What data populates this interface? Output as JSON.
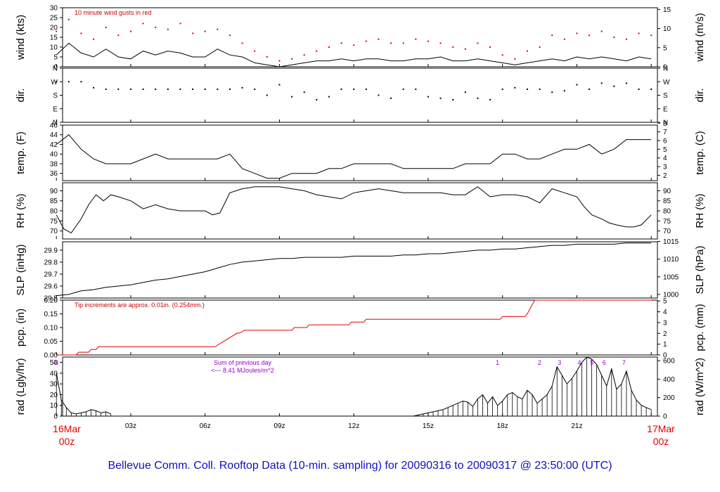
{
  "title": "Bellevue Comm. Coll. Rooftop Data (10-min. sampling) for 20090316  to  20090317 @ 23:50:00  (UTC)",
  "x_axis": {
    "hours": [
      0,
      3,
      6,
      9,
      12,
      15,
      18,
      21,
      24
    ],
    "tick_labels": [
      "",
      "03z",
      "06z",
      "09z",
      "12z",
      "15z",
      "18z",
      "21z",
      ""
    ],
    "start_date": "16Mar",
    "start_time": "00z",
    "end_date": "17Mar",
    "end_time": "00z"
  },
  "colors": {
    "line": "#000000",
    "gust": "#e00000",
    "precip": "#e00000",
    "annot": "#9900cc",
    "title": "#1010c0",
    "date": "#e00000"
  },
  "chart_data": [
    {
      "type": "line",
      "key": "wind",
      "ylabel_left": "wind (kts)",
      "ylabel_right": "wind (m/s)",
      "ylim": [
        0,
        30
      ],
      "yticks": [
        0,
        5,
        10,
        15,
        20,
        25,
        30
      ],
      "right_ticks": [
        {
          "value": 0,
          "label": "0"
        },
        {
          "value": 9.72,
          "label": "5"
        },
        {
          "value": 19.44,
          "label": "10"
        },
        {
          "value": 29.16,
          "label": "15"
        }
      ],
      "annotation": "10  minute wind gusts in red",
      "series": [
        {
          "name": "",
          "style": "line",
          "x": [
            0,
            0.5,
            1,
            1.5,
            2,
            2.5,
            3,
            3.5,
            4,
            4.5,
            5,
            5.5,
            6,
            6.5,
            7,
            7.5,
            8,
            8.5,
            9,
            9.5,
            10,
            10.5,
            11,
            11.5,
            12,
            12.5,
            13,
            13.5,
            14,
            14.5,
            15,
            15.5,
            16,
            16.5,
            17,
            17.5,
            18,
            18.5,
            19,
            19.5,
            20,
            20.5,
            21,
            21.5,
            22,
            22.5,
            23,
            23.5,
            24
          ],
          "y": [
            6,
            12,
            7,
            5,
            9,
            5,
            4,
            8,
            6,
            8,
            7,
            5,
            5,
            9,
            6,
            5,
            2,
            1,
            0,
            1,
            2,
            3,
            3,
            4,
            3,
            4,
            4,
            3,
            3,
            4,
            4,
            5,
            3,
            3,
            4,
            3,
            2,
            1,
            2,
            3,
            4,
            3,
            5,
            4,
            5,
            4,
            3,
            5,
            4
          ]
        },
        {
          "name": "",
          "style": "dots",
          "x": [
            0,
            0.5,
            1,
            1.5,
            2,
            2.5,
            3,
            3.5,
            4,
            4.5,
            5,
            5.5,
            6,
            6.5,
            7,
            7.5,
            8,
            8.5,
            9,
            9.5,
            10,
            10.5,
            11,
            11.5,
            12,
            12.5,
            13,
            13.5,
            14,
            14.5,
            15,
            15.5,
            16,
            16.5,
            17,
            17.5,
            18,
            18.5,
            19,
            19.5,
            20,
            20.5,
            21,
            21.5,
            22,
            22.5,
            23,
            23.5,
            24
          ],
          "y": [
            18,
            24,
            17,
            14,
            20,
            16,
            18,
            22,
            20,
            19,
            22,
            17,
            18,
            19,
            16,
            12,
            8,
            5,
            3,
            4,
            6,
            8,
            10,
            12,
            11,
            13,
            14,
            12,
            12,
            14,
            13,
            12,
            10,
            9,
            12,
            10,
            6,
            4,
            8,
            10,
            16,
            14,
            17,
            16,
            18,
            15,
            14,
            17,
            16
          ]
        }
      ]
    },
    {
      "type": "scatter",
      "key": "dir",
      "ylabel_left": "dir.",
      "ylabel_right": "dir.",
      "ylim": [
        0,
        360
      ],
      "yticks": [
        0,
        90,
        180,
        270,
        360
      ],
      "ytick_labels": [
        "N",
        "E",
        "S",
        "W",
        "N"
      ],
      "series": [
        {
          "name": "",
          "x": [
            0,
            0.5,
            1,
            1.5,
            2,
            2.5,
            3,
            3.5,
            4,
            4.5,
            5,
            5.5,
            6,
            6.5,
            7,
            7.5,
            8,
            8.5,
            9,
            9.5,
            10,
            10.5,
            11,
            11.5,
            12,
            12.5,
            13,
            13.5,
            14,
            14.5,
            15,
            15.5,
            16,
            16.5,
            17,
            17.5,
            18,
            18.5,
            19,
            19.5,
            20,
            20.5,
            21,
            21.5,
            22,
            22.5,
            23,
            23.5,
            24
          ],
          "y": [
            270,
            270,
            270,
            230,
            220,
            220,
            220,
            220,
            220,
            220,
            220,
            220,
            220,
            220,
            220,
            230,
            220,
            180,
            250,
            170,
            200,
            150,
            170,
            220,
            220,
            220,
            180,
            160,
            220,
            220,
            170,
            160,
            150,
            200,
            160,
            150,
            220,
            230,
            220,
            220,
            200,
            210,
            250,
            220,
            260,
            240,
            260,
            220,
            220
          ]
        }
      ]
    },
    {
      "type": "line",
      "key": "temp",
      "ylabel_left": "temp. (F)",
      "ylabel_right": "temp. (C)",
      "ylim": [
        34.5,
        46
      ],
      "yticks": [
        36,
        38,
        40,
        42,
        44,
        46
      ],
      "right_ticks": [
        {
          "value": 35.6,
          "label": "2"
        },
        {
          "value": 37.4,
          "label": "3"
        },
        {
          "value": 39.2,
          "label": "4"
        },
        {
          "value": 41,
          "label": "5"
        },
        {
          "value": 42.8,
          "label": "6"
        },
        {
          "value": 44.6,
          "label": "7"
        },
        {
          "value": 46.4,
          "label": "8"
        }
      ],
      "series": [
        {
          "name": "",
          "x": [
            0,
            0.5,
            1,
            1.5,
            2,
            2.5,
            3,
            3.5,
            4,
            4.5,
            5,
            5.5,
            6,
            6.5,
            7,
            7.5,
            8,
            8.5,
            9,
            9.5,
            10,
            10.5,
            11,
            11.5,
            12,
            12.5,
            13,
            13.5,
            14,
            14.5,
            15,
            15.5,
            16,
            16.5,
            17,
            17.5,
            18,
            18.5,
            19,
            19.5,
            20,
            20.5,
            21,
            21.5,
            22,
            22.5,
            23,
            23.5,
            24
          ],
          "y": [
            42,
            44,
            41,
            39,
            38,
            38,
            38,
            39,
            40,
            39,
            39,
            39,
            39,
            39,
            40,
            37,
            36,
            35,
            35,
            36,
            36,
            36,
            37,
            37,
            38,
            38,
            38,
            38,
            37,
            37,
            37,
            37,
            37,
            38,
            38,
            38,
            40,
            40,
            39,
            39,
            40,
            41,
            41,
            42,
            40,
            41,
            43,
            43,
            43
          ]
        }
      ]
    },
    {
      "type": "line",
      "key": "rh",
      "ylabel_left": "RH (%)",
      "ylabel_right": "RH (%)",
      "ylim": [
        66,
        94
      ],
      "yticks": [
        70,
        75,
        80,
        85,
        90
      ],
      "right_ticks": [
        {
          "value": 70,
          "label": "70"
        },
        {
          "value": 75,
          "label": "75"
        },
        {
          "value": 80,
          "label": "80"
        },
        {
          "value": 85,
          "label": "85"
        },
        {
          "value": 90,
          "label": "90"
        }
      ],
      "series": [
        {
          "name": "",
          "x": [
            0,
            0.3,
            0.6,
            1,
            1.3,
            1.6,
            1.9,
            2.2,
            2.5,
            3,
            3.5,
            4,
            4.5,
            5,
            5.5,
            6,
            6.3,
            6.6,
            7,
            7.5,
            8,
            8.5,
            9,
            9.5,
            10,
            10.5,
            11,
            11.5,
            12,
            12.5,
            13,
            13.5,
            14,
            14.5,
            15,
            15.5,
            16,
            16.5,
            17,
            17.5,
            18,
            18.5,
            19,
            19.5,
            20,
            20.5,
            21,
            21.3,
            21.6,
            22,
            22.3,
            22.6,
            23,
            23.3,
            23.6,
            24
          ],
          "y": [
            78,
            71,
            69,
            76,
            83,
            88,
            85,
            88,
            87,
            85,
            81,
            83,
            81,
            80,
            80,
            80,
            78,
            79,
            89,
            91,
            92,
            92,
            92,
            91,
            90,
            88,
            87,
            86,
            89,
            90,
            91,
            90,
            89,
            89,
            89,
            89,
            88,
            88,
            92,
            87,
            88,
            88,
            87,
            84,
            91,
            89,
            87,
            82,
            78,
            76,
            74,
            73,
            72,
            72,
            73,
            78
          ]
        }
      ]
    },
    {
      "type": "line",
      "key": "slp",
      "ylabel_left": "SLP (inHg)",
      "ylabel_right": "SLP (hPa)",
      "ylim": [
        29.5,
        29.97
      ],
      "yticks": [
        29.5,
        29.6,
        29.7,
        29.8,
        29.9
      ],
      "right_ticks": [
        {
          "value": 29.53,
          "label": "1000"
        },
        {
          "value": 29.677,
          "label": "1005"
        },
        {
          "value": 29.825,
          "label": "1010"
        },
        {
          "value": 29.973,
          "label": "1015"
        }
      ],
      "series": [
        {
          "name": "",
          "x": [
            0,
            0.5,
            1,
            1.5,
            2,
            2.5,
            3,
            3.5,
            4,
            4.5,
            5,
            5.5,
            6,
            6.5,
            7,
            7.5,
            8,
            8.5,
            9,
            9.5,
            10,
            10.5,
            11,
            11.5,
            12,
            12.5,
            13,
            13.5,
            14,
            14.5,
            15,
            15.5,
            16,
            16.5,
            17,
            17.5,
            18,
            18.5,
            19,
            19.5,
            20,
            20.5,
            21,
            21.5,
            22,
            22.5,
            23,
            23.5,
            24
          ],
          "y": [
            29.52,
            29.53,
            29.56,
            29.57,
            29.59,
            29.6,
            29.61,
            29.63,
            29.65,
            29.66,
            29.68,
            29.7,
            29.72,
            29.75,
            29.78,
            29.8,
            29.81,
            29.82,
            29.83,
            29.83,
            29.84,
            29.84,
            29.84,
            29.84,
            29.85,
            29.85,
            29.85,
            29.85,
            29.86,
            29.86,
            29.87,
            29.87,
            29.88,
            29.89,
            29.9,
            29.9,
            29.91,
            29.91,
            29.92,
            29.93,
            29.94,
            29.94,
            29.95,
            29.95,
            29.95,
            29.95,
            29.96,
            29.96,
            29.96
          ]
        }
      ]
    },
    {
      "type": "line",
      "key": "pcp",
      "ylabel_left": "pcp. (in)",
      "ylabel_right": "pcp. (mm)",
      "ylim": [
        0,
        0.2
      ],
      "yticks": [
        0,
        0.05,
        0.1,
        0.15,
        0.2
      ],
      "ytick_labels": [
        "0.00",
        "0.05",
        "0.10",
        "0.15",
        "0.20"
      ],
      "right_ticks": [
        {
          "value": 0,
          "label": "0"
        },
        {
          "value": 0.0394,
          "label": "1"
        },
        {
          "value": 0.0787,
          "label": "2"
        },
        {
          "value": 0.1181,
          "label": "3"
        },
        {
          "value": 0.1575,
          "label": "4"
        },
        {
          "value": 0.1969,
          "label": "5"
        }
      ],
      "annotation": "Tip increments are approx. 0.01in. (0.254mm.)",
      "series": [
        {
          "name": "",
          "x": [
            0,
            0.8,
            0.9,
            1.3,
            1.4,
            1.6,
            1.7,
            6.4,
            7.3,
            7.4,
            7.6,
            7.7,
            9.5,
            9.6,
            10.1,
            10.2,
            11.8,
            11.9,
            12.4,
            12.5,
            17.9,
            18.0,
            18.9,
            19.0,
            19.3,
            24
          ],
          "y": [
            0,
            0,
            0.01,
            0.01,
            0.02,
            0.02,
            0.03,
            0.03,
            0.08,
            0.08,
            0.09,
            0.09,
            0.09,
            0.1,
            0.1,
            0.11,
            0.11,
            0.12,
            0.12,
            0.13,
            0.13,
            0.14,
            0.14,
            0.15,
            0.2,
            0.2
          ]
        }
      ]
    },
    {
      "type": "area",
      "key": "rad",
      "ylabel_left": "rad (Lgly/hr)",
      "ylabel_right": "rad (W/m^2)",
      "ylim": [
        0,
        55
      ],
      "yticks": [
        0,
        10,
        20,
        30,
        40,
        50
      ],
      "right_ticks": [
        {
          "value": 0,
          "label": "0"
        },
        {
          "value": 17.2,
          "label": "200"
        },
        {
          "value": 34.4,
          "label": "400"
        },
        {
          "value": 51.6,
          "label": "600"
        }
      ],
      "annotation_lines": [
        "Sum of previous day",
        "<--- 8.41 MJoules/m^2"
      ],
      "markers": [
        {
          "x": 0,
          "label": "8"
        },
        {
          "x": 17.8,
          "label": "1"
        },
        {
          "x": 19.5,
          "label": "2"
        },
        {
          "x": 20.3,
          "label": "3"
        },
        {
          "x": 21.1,
          "label": "4"
        },
        {
          "x": 21.6,
          "label": "5"
        },
        {
          "x": 22.1,
          "label": "6"
        },
        {
          "x": 22.9,
          "label": "7"
        }
      ],
      "series": [
        {
          "name": "",
          "x": [
            0,
            0.2,
            0.4,
            0.6,
            0.8,
            1.0,
            1.2,
            1.4,
            1.6,
            1.8,
            2.0,
            2.2,
            14.4,
            14.6,
            14.8,
            15.0,
            15.2,
            15.4,
            15.6,
            15.8,
            16.0,
            16.2,
            16.4,
            16.6,
            16.8,
            17.0,
            17.2,
            17.4,
            17.6,
            17.8,
            18.0,
            18.2,
            18.4,
            18.6,
            18.8,
            19.0,
            19.2,
            19.4,
            19.6,
            19.8,
            20.0,
            20.2,
            20.4,
            20.6,
            20.8,
            21.0,
            21.2,
            21.4,
            21.6,
            21.8,
            22.0,
            22.2,
            22.4,
            22.6,
            22.8,
            23.0,
            23.2,
            23.4,
            23.6,
            23.8,
            24.0
          ],
          "y": [
            40,
            15,
            8,
            3,
            2,
            3,
            4,
            6,
            5,
            3,
            4,
            2,
            0,
            1,
            2,
            3,
            4,
            5,
            6,
            8,
            10,
            12,
            14,
            13,
            9,
            16,
            20,
            12,
            18,
            10,
            14,
            20,
            22,
            18,
            16,
            24,
            20,
            12,
            16,
            20,
            28,
            46,
            38,
            30,
            35,
            42,
            50,
            55,
            53,
            48,
            38,
            28,
            44,
            25,
            30,
            42,
            24,
            15,
            10,
            8,
            6
          ]
        }
      ]
    }
  ]
}
